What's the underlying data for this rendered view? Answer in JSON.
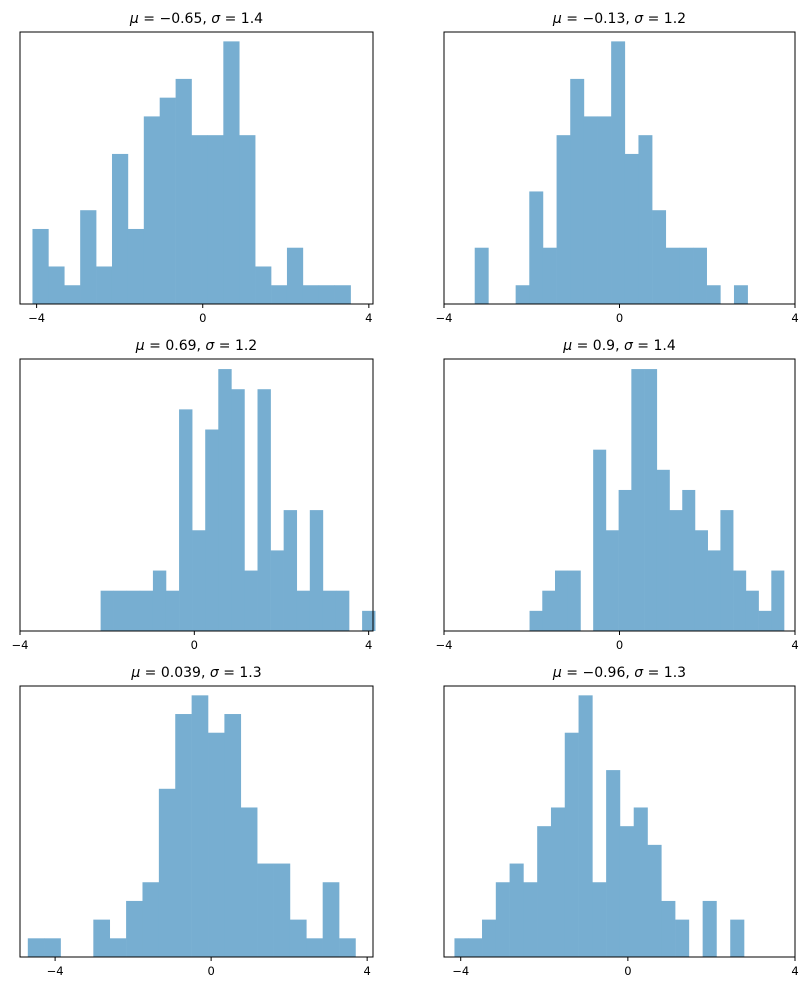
{
  "bar_color": "#77aed1",
  "axes_color": "#000000",
  "chart_data": [
    {
      "type": "bar",
      "title_prefix": "μ = ",
      "mu": "−0.65",
      "title_sep": ",    ",
      "sigma_label": "σ = ",
      "sigma": "1.4",
      "title": "μ = −0.65,    σ = 1.4",
      "xlim": [
        -4.4,
        4.1
      ],
      "ylim": [
        0,
        14.5
      ],
      "xticks": [
        -4,
        0,
        4
      ],
      "xtick_labels": [
        "−4",
        "0",
        "4"
      ],
      "yticks": [],
      "bin_start": -4.1,
      "bin_width": 0.383,
      "counts": [
        4,
        2,
        1,
        5,
        2,
        8,
        4,
        10,
        11,
        12,
        9,
        9,
        14,
        9,
        2,
        1,
        3,
        1,
        1,
        1
      ]
    },
    {
      "type": "bar",
      "title_prefix": "μ = ",
      "mu": "−0.13",
      "title_sep": ",    ",
      "sigma_label": "σ = ",
      "sigma": "1.2",
      "title": "μ = −0.13,    σ = 1.2",
      "xlim": [
        -4,
        4
      ],
      "ylim": [
        0,
        14.5
      ],
      "xticks": [
        -4,
        0,
        4
      ],
      "xtick_labels": [
        "−4",
        "0",
        "4"
      ],
      "yticks": [],
      "bin_start": -3.3,
      "bin_width": 0.311,
      "counts": [
        3,
        0,
        0,
        1,
        6,
        3,
        9,
        12,
        10,
        10,
        14,
        8,
        9,
        5,
        3,
        3,
        3,
        1,
        0,
        1
      ]
    },
    {
      "type": "bar",
      "title_prefix": "μ = ",
      "mu": "0.69",
      "title_sep": ",    ",
      "sigma_label": "σ = ",
      "sigma": "1.2",
      "title": "μ = 0.69,    σ = 1.2",
      "xlim": [
        -4,
        4.1
      ],
      "ylim": [
        0,
        13.5
      ],
      "xticks": [
        -4,
        0,
        4
      ],
      "xtick_labels": [
        "−4",
        "0",
        "4"
      ],
      "yticks": [],
      "bin_start": -2.15,
      "bin_width": 0.3,
      "counts": [
        2,
        2,
        2,
        2,
        3,
        2,
        11,
        5,
        10,
        13,
        12,
        3,
        12,
        4,
        6,
        2,
        6,
        2,
        2,
        0,
        1
      ]
    },
    {
      "type": "bar",
      "title_prefix": "μ = ",
      "mu": "0.9",
      "title_sep": ",    ",
      "sigma_label": "σ = ",
      "sigma": "1.4",
      "title": "μ = 0.9,    σ = 1.4",
      "xlim": [
        -4,
        4
      ],
      "ylim": [
        0,
        13.5
      ],
      "xticks": [
        -4,
        0,
        4
      ],
      "xtick_labels": [
        "−4",
        "0",
        "4"
      ],
      "yticks": [],
      "bin_start": -2.05,
      "bin_width": 0.29,
      "counts": [
        1,
        2,
        3,
        3,
        0,
        9,
        5,
        7,
        13,
        13,
        8,
        6,
        7,
        5,
        4,
        6,
        3,
        2,
        1,
        3
      ]
    },
    {
      "type": "bar",
      "title_prefix": "μ = ",
      "mu": "0.039",
      "title_sep": ",    ",
      "sigma_label": "σ = ",
      "sigma": "1.3",
      "title": "μ = 0.039,    σ = 1.3",
      "xlim": [
        -4.9,
        4.15
      ],
      "ylim": [
        0,
        14.5
      ],
      "xticks": [
        -4,
        0,
        4
      ],
      "xtick_labels": [
        "−4",
        "0",
        "4"
      ],
      "yticks": [],
      "bin_start": -4.7,
      "bin_width": 0.42,
      "counts": [
        1,
        1,
        0,
        0,
        2,
        1,
        3,
        4,
        9,
        13,
        14,
        12,
        13,
        8,
        5,
        5,
        2,
        1,
        4,
        1
      ]
    },
    {
      "type": "bar",
      "title_prefix": "μ = ",
      "mu": "−0.96",
      "title_sep": ",    ",
      "sigma_label": "σ = ",
      "sigma": "1.3",
      "title": "μ = −0.96,    σ = 1.3",
      "xlim": [
        -4.4,
        4
      ],
      "ylim": [
        0,
        14.5
      ],
      "xticks": [
        -4,
        0,
        4
      ],
      "xtick_labels": [
        "−4",
        "0",
        "4"
      ],
      "yticks": [],
      "bin_start": -4.15,
      "bin_width": 0.33,
      "counts": [
        1,
        1,
        2,
        4,
        5,
        4,
        7,
        8,
        12,
        14,
        4,
        10,
        7,
        8,
        6,
        3,
        2,
        0,
        3,
        0,
        2
      ]
    }
  ]
}
